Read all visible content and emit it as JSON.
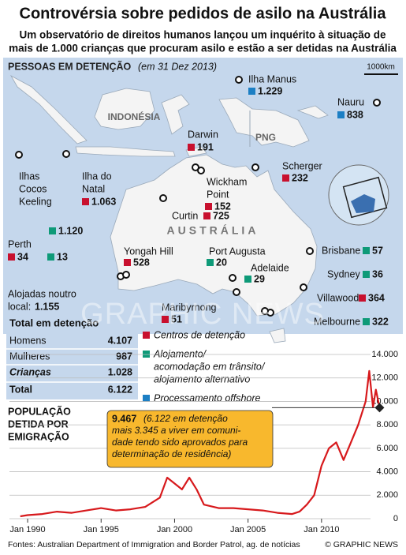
{
  "header": {
    "title": "Controvérsia sobre pedidos de asilo na Austrália",
    "subtitle_lines": [
      "Um observatório de direitos humanos lançou um inquérito à situação de",
      "mais de 1.000 crianças que procuram asilo e estão a ser detidas na Austrália"
    ]
  },
  "map": {
    "heading": "PESSOAS EM DETENÇÃO",
    "date": "(em 31 Dez 2013)",
    "scale": "1000km",
    "regions": [
      "INDONÉSIA",
      "PNG",
      "AUSTRÁLIA"
    ],
    "locations": [
      {
        "name_lines": [
          "Ilha Manus"
        ],
        "counts": [
          {
            "label": "1.229",
            "color": "#1c7fc4"
          }
        ]
      },
      {
        "name_lines": [
          "Nauru"
        ],
        "counts": [
          {
            "label": "838",
            "color": "#1c7fc4"
          }
        ]
      },
      {
        "name_lines": [
          "Darwin"
        ],
        "counts": [
          {
            "label": "191",
            "color": "#c8102e"
          }
        ]
      },
      {
        "name_lines": [
          "Scherger"
        ],
        "counts": [
          {
            "label": "232",
            "color": "#c8102e"
          }
        ]
      },
      {
        "name_lines": [
          "Ilhas",
          "Cocos",
          "Keeling"
        ],
        "counts": []
      },
      {
        "name_lines": [
          "Ilha do",
          "Natal"
        ],
        "counts": [
          {
            "label": "1.063",
            "color": "#c8102e"
          },
          {
            "label": "1.120",
            "color": "#0e9a78"
          }
        ]
      },
      {
        "name_lines": [
          "Wickham",
          "Point"
        ],
        "counts": [
          {
            "label": "152",
            "color": "#c8102e"
          }
        ]
      },
      {
        "name_lines": [
          "Curtin"
        ],
        "counts": [
          {
            "label": "725",
            "color": "#c8102e"
          }
        ]
      },
      {
        "name_lines": [
          "Perth"
        ],
        "counts": [
          {
            "label": "34",
            "color": "#c8102e"
          },
          {
            "label": "13",
            "color": "#0e9a78"
          }
        ]
      },
      {
        "name_lines": [
          "Yongah Hill"
        ],
        "counts": [
          {
            "label": "528",
            "color": "#c8102e"
          }
        ]
      },
      {
        "name_lines": [
          "Port Augusta"
        ],
        "counts": [
          {
            "label": "20",
            "color": "#0e9a78"
          }
        ]
      },
      {
        "name_lines": [
          "Adelaide"
        ],
        "counts": [
          {
            "label": "29",
            "color": "#0e9a78"
          }
        ]
      },
      {
        "name_lines": [
          "Brisbane"
        ],
        "counts": [
          {
            "label": "57",
            "color": "#0e9a78"
          }
        ]
      },
      {
        "name_lines": [
          "Sydney"
        ],
        "counts": [
          {
            "label": "36",
            "color": "#0e9a78"
          }
        ]
      },
      {
        "name_lines": [
          "Villawood"
        ],
        "counts": [
          {
            "label": "364",
            "color": "#c8102e"
          }
        ]
      },
      {
        "name_lines": [
          "Maribyrnong"
        ],
        "counts": [
          {
            "label": "51",
            "color": "#c8102e"
          }
        ]
      },
      {
        "name_lines": [
          "Melbourne"
        ],
        "counts": [
          {
            "label": "322",
            "color": "#0e9a78"
          }
        ]
      }
    ],
    "elsewhere": {
      "lines": [
        "Alojadas noutro",
        "local:"
      ],
      "value": "1.155",
      "color": "#0e9a78"
    }
  },
  "table": {
    "title": "Total em detenção",
    "rows": [
      [
        "Homens",
        "4.107"
      ],
      [
        "Mulheres",
        "987"
      ],
      [
        "Crianças",
        "1.028"
      ],
      [
        "Total",
        "6.122"
      ]
    ]
  },
  "legend": [
    {
      "lines": [
        "Centros de detenção"
      ],
      "color": "#c8102e"
    },
    {
      "lines": [
        "Alojamento/",
        "acomodação em trânsito/",
        "alojamento alternativo"
      ],
      "color": "#0e9a78"
    },
    {
      "lines": [
        "Processamento offshore"
      ],
      "color": "#1c7fc4"
    }
  ],
  "chart_data": {
    "type": "line",
    "title_lines": [
      "POPULAÇÃO",
      "DETIDA POR",
      "EMIGRAÇÃO"
    ],
    "x": [
      1989.5,
      1990,
      1991,
      1992,
      1993,
      1994,
      1995,
      1996,
      1997,
      1998,
      1999,
      1999.5,
      2000,
      2000.5,
      2001,
      2001.5,
      2002,
      2003,
      2004,
      2005,
      2006,
      2007,
      2008,
      2008.5,
      2009,
      2009.5,
      2010,
      2010.5,
      2011,
      2011.5,
      2012,
      2012.5,
      2013,
      2013.25,
      2013.5,
      2013.7,
      2013.95
    ],
    "series": [
      {
        "name": "POPULAÇÃO DETIDA POR EMIGRAÇÃO",
        "color": "#d7191c",
        "values": [
          200,
          300,
          400,
          600,
          500,
          700,
          900,
          700,
          800,
          1000,
          1800,
          3500,
          3000,
          2500,
          3500,
          2500,
          1200,
          900,
          900,
          800,
          700,
          500,
          400,
          600,
          1200,
          2000,
          4500,
          6000,
          6500,
          5000,
          6500,
          8000,
          10000,
          12600,
          9500,
          11000,
          9467
        ]
      }
    ],
    "xlim": [
      1989.3,
      2014.3
    ],
    "ylim": [
      0,
      14000
    ],
    "xticks": [
      {
        "value": 1990,
        "label": "Jan 1990"
      },
      {
        "value": 1995,
        "label": "Jan 1995"
      },
      {
        "value": 2000,
        "label": "Jan 2000"
      },
      {
        "value": 2005,
        "label": "Jan 2005"
      },
      {
        "value": 2010,
        "label": "Jan 2010"
      }
    ],
    "yticks": [
      0,
      {
        "value": 2000,
        "label": "2.000"
      },
      {
        "value": 4000,
        "label": "4.000"
      },
      {
        "value": 6000,
        "label": "6.000"
      },
      {
        "value": 8000,
        "label": "8.000"
      },
      {
        "value": 10000,
        "label": "10.000"
      },
      {
        "value": 12000,
        "label": "12.000"
      },
      {
        "value": 14000,
        "label": "14.000"
      }
    ],
    "grid": true,
    "annotation": {
      "value_label": "9.467",
      "lines": [
        "(6.122 em detenção",
        "mais 3.345 a viver em comuni-",
        "dade tendo sido aprovados para",
        "determinação de residência)"
      ]
    }
  },
  "footer": {
    "source": "Fontes: Australian Department of Immigration and Border Patrol, ag. de notícias",
    "credit": "© GRAPHIC NEWS"
  },
  "watermark": "GRAPHIC NEWS"
}
